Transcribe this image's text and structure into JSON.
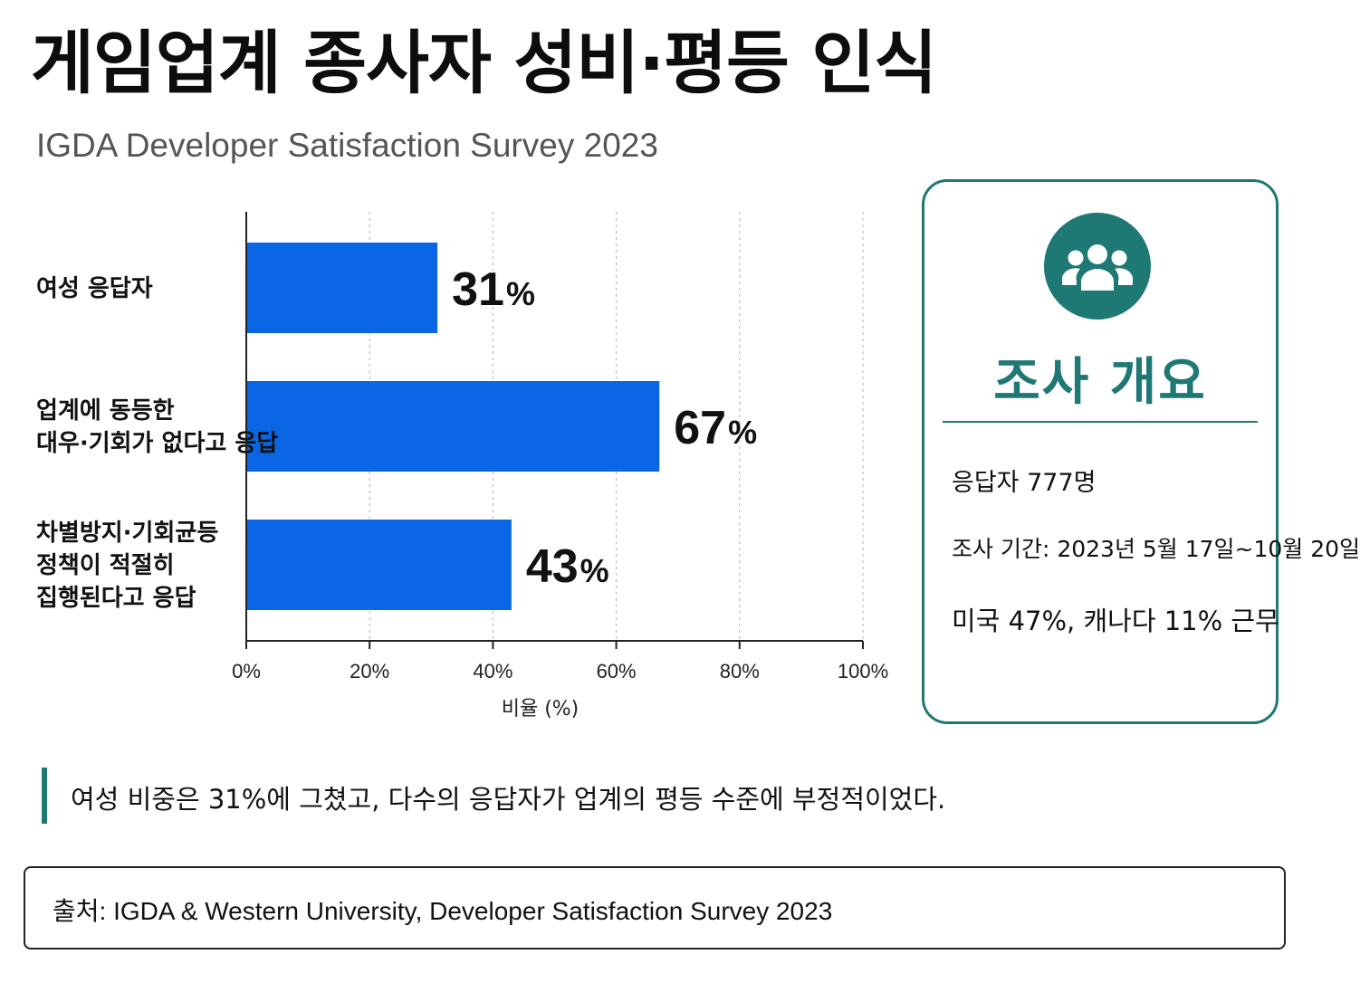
{
  "header": {
    "title": "게임업계 종사자 성비·평등 인식",
    "subtitle": "IGDA Developer Satisfaction Survey 2023"
  },
  "chart_data": {
    "type": "bar",
    "orientation": "horizontal",
    "categories": [
      [
        "여성 응답자"
      ],
      [
        "업계에 동등한",
        "대우·기회가 없다고 응답"
      ],
      [
        "차별방지·기회균등",
        "정책이 적절히",
        "집행된다고 응답"
      ]
    ],
    "values": [
      31,
      67,
      43
    ],
    "value_suffix": "%",
    "bar_color": "#0a66e4",
    "xlim": [
      0,
      100
    ],
    "x_ticks": [
      "0%",
      "20%",
      "40%",
      "60%",
      "80%",
      "100%"
    ],
    "xlabel": "비율 (%)",
    "grid": "vertical dotted"
  },
  "overview": {
    "icon": "people-group-icon",
    "title": "조사 개요",
    "respondents": "응답자 777명",
    "period": "조사 기간: 2023년 5월 17일~10월 20일",
    "location": "미국 47%, 캐나다 11% 근무",
    "accent": "#1e7873"
  },
  "note": "여성 비중은 31%에 그쳤고, 다수의 응답자가 업계의 평등 수준에 부정적이었다.",
  "source": "출처: IGDA & Western University, Developer Satisfaction Survey 2023"
}
